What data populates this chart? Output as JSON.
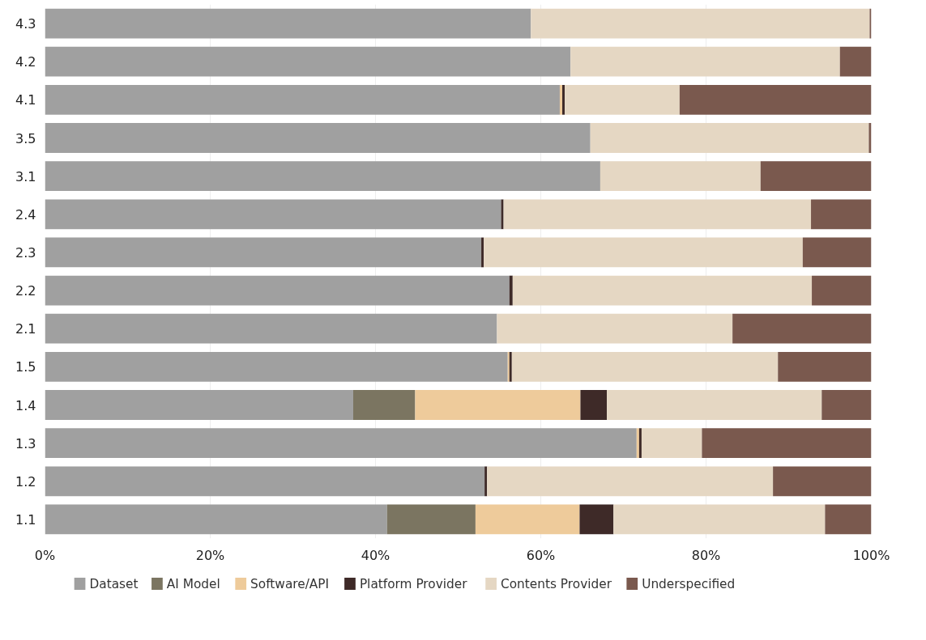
{
  "chart_data": {
    "type": "bar",
    "orientation": "horizontal",
    "stacked": true,
    "categories": [
      "4.3",
      "4.2",
      "4.1",
      "3.5",
      "3.1",
      "2.4",
      "2.3",
      "2.2",
      "2.1",
      "1.5",
      "1.4",
      "1.3",
      "1.2",
      "1.1"
    ],
    "series": [
      {
        "name": "Dataset",
        "color": "#a0a0a0",
        "values": [
          58.8,
          63.6,
          62.3,
          66.0,
          67.2,
          55.2,
          52.8,
          56.2,
          54.7,
          56.0,
          37.3,
          71.6,
          53.2,
          41.4
        ]
      },
      {
        "name": "AI Model",
        "color": "#7b7561",
        "values": [
          0,
          0,
          0,
          0,
          0,
          0,
          0,
          0,
          0,
          0,
          7.5,
          0,
          0,
          10.7
        ]
      },
      {
        "name": "Software/API",
        "color": "#eecb9b",
        "values": [
          0,
          0,
          0.3,
          0,
          0,
          0,
          0,
          0,
          0,
          0.2,
          20.0,
          0.3,
          0,
          12.6
        ]
      },
      {
        "name": "Platform Provider",
        "color": "#3e2a28",
        "values": [
          0,
          0,
          0.3,
          0,
          0,
          0.3,
          0.3,
          0.4,
          0,
          0.3,
          3.2,
          0.3,
          0.3,
          4.1
        ]
      },
      {
        "name": "Contents Provider",
        "color": "#e5d7c3",
        "values": [
          41.0,
          32.6,
          13.9,
          33.7,
          19.4,
          37.2,
          38.6,
          36.2,
          28.5,
          32.2,
          26.0,
          7.3,
          34.6,
          25.6
        ]
      },
      {
        "name": "Underspecified",
        "color": "#7a594e",
        "values": [
          0.2,
          3.8,
          23.2,
          0.3,
          13.4,
          7.3,
          8.3,
          7.2,
          16.8,
          11.3,
          6.0,
          20.5,
          11.9,
          5.6
        ]
      }
    ],
    "xlim": [
      0,
      100
    ],
    "xticks": [
      {
        "value": 0,
        "label": "0%"
      },
      {
        "value": 20,
        "label": "20%"
      },
      {
        "value": 40,
        "label": "40%"
      },
      {
        "value": 60,
        "label": "60%"
      },
      {
        "value": 80,
        "label": "80%"
      },
      {
        "value": 100,
        "label": "100%"
      }
    ],
    "grid": "x",
    "legend": "bottom"
  }
}
